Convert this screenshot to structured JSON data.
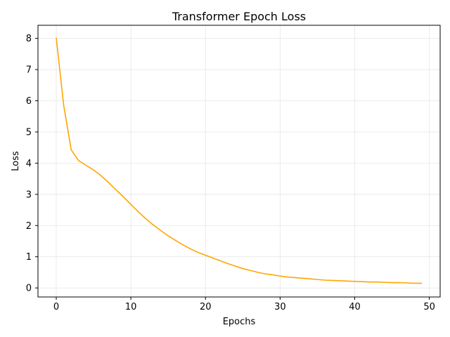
{
  "chart_data": {
    "type": "line",
    "title": "Transformer Epoch Loss",
    "xlabel": "Epochs",
    "ylabel": "Loss",
    "xlim": [
      -2.45,
      51.45
    ],
    "ylim": [
      -0.29,
      8.42
    ],
    "xticks": [
      0,
      10,
      20,
      30,
      40,
      50
    ],
    "yticks": [
      0,
      1,
      2,
      3,
      4,
      5,
      6,
      7,
      8
    ],
    "grid": true,
    "legend": "none",
    "series": [
      {
        "color": "#FFA500",
        "x": [
          0,
          1,
          2,
          3,
          4,
          5,
          6,
          7,
          8,
          9,
          10,
          11,
          12,
          13,
          14,
          15,
          16,
          17,
          18,
          19,
          20,
          21,
          22,
          23,
          24,
          25,
          26,
          27,
          28,
          29,
          30,
          31,
          32,
          33,
          34,
          35,
          36,
          37,
          38,
          39,
          40,
          41,
          42,
          43,
          44,
          45,
          46,
          47,
          48,
          49
        ],
        "y": [
          8.02,
          5.85,
          4.43,
          4.08,
          3.93,
          3.78,
          3.6,
          3.38,
          3.15,
          2.92,
          2.68,
          2.44,
          2.22,
          2.02,
          1.84,
          1.67,
          1.52,
          1.38,
          1.25,
          1.14,
          1.05,
          0.96,
          0.87,
          0.78,
          0.7,
          0.62,
          0.56,
          0.5,
          0.45,
          0.42,
          0.38,
          0.35,
          0.33,
          0.31,
          0.29,
          0.27,
          0.25,
          0.24,
          0.23,
          0.22,
          0.21,
          0.2,
          0.19,
          0.19,
          0.18,
          0.17,
          0.17,
          0.16,
          0.15,
          0.15
        ]
      }
    ]
  }
}
